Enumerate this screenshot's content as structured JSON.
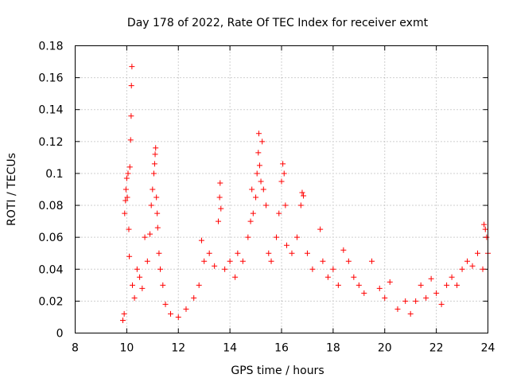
{
  "chart_data": {
    "type": "scatter",
    "title": "Day 178 of 2022, Rate Of TEC Index for receiver exmt",
    "xlabel": "GPS time / hours",
    "ylabel": "ROTI / TECUs",
    "xlim": [
      8,
      24
    ],
    "ylim": [
      0,
      0.18
    ],
    "xticks": [
      "8",
      "10",
      "12",
      "14",
      "16",
      "18",
      "20",
      "22",
      "24"
    ],
    "yticks": [
      "0",
      "0.02",
      "0.04",
      "0.06",
      "0.08",
      "0.1",
      "0.12",
      "0.14",
      "0.16",
      "0.18"
    ],
    "grid": true,
    "marker": "+",
    "color": "#ff0000",
    "series": [
      {
        "values": [
          [
            9.85,
            0.008
          ],
          [
            9.9,
            0.012
          ],
          [
            9.92,
            0.075
          ],
          [
            9.95,
            0.083
          ],
          [
            9.97,
            0.09
          ],
          [
            10.0,
            0.097
          ],
          [
            10.02,
            0.085
          ],
          [
            10.05,
            0.1
          ],
          [
            10.08,
            0.065
          ],
          [
            10.1,
            0.048
          ],
          [
            10.12,
            0.104
          ],
          [
            10.15,
            0.121
          ],
          [
            10.17,
            0.136
          ],
          [
            10.18,
            0.155
          ],
          [
            10.2,
            0.167
          ],
          [
            10.22,
            0.03
          ],
          [
            10.3,
            0.022
          ],
          [
            10.4,
            0.04
          ],
          [
            10.5,
            0.035
          ],
          [
            10.6,
            0.028
          ],
          [
            10.7,
            0.06
          ],
          [
            10.8,
            0.045
          ],
          [
            10.9,
            0.062
          ],
          [
            10.95,
            0.08
          ],
          [
            11.0,
            0.09
          ],
          [
            11.05,
            0.1
          ],
          [
            11.08,
            0.106
          ],
          [
            11.1,
            0.112
          ],
          [
            11.12,
            0.116
          ],
          [
            11.15,
            0.085
          ],
          [
            11.18,
            0.075
          ],
          [
            11.2,
            0.066
          ],
          [
            11.25,
            0.05
          ],
          [
            11.3,
            0.04
          ],
          [
            11.4,
            0.03
          ],
          [
            11.5,
            0.018
          ],
          [
            11.7,
            0.012
          ],
          [
            12.0,
            0.01
          ],
          [
            12.3,
            0.015
          ],
          [
            12.6,
            0.022
          ],
          [
            12.8,
            0.03
          ],
          [
            12.9,
            0.058
          ],
          [
            13.0,
            0.045
          ],
          [
            13.2,
            0.05
          ],
          [
            13.4,
            0.042
          ],
          [
            13.55,
            0.07
          ],
          [
            13.6,
            0.085
          ],
          [
            13.62,
            0.094
          ],
          [
            13.65,
            0.078
          ],
          [
            13.8,
            0.04
          ],
          [
            14.0,
            0.045
          ],
          [
            14.2,
            0.035
          ],
          [
            14.3,
            0.05
          ],
          [
            14.5,
            0.045
          ],
          [
            14.7,
            0.06
          ],
          [
            14.8,
            0.07
          ],
          [
            14.85,
            0.09
          ],
          [
            14.9,
            0.075
          ],
          [
            15.0,
            0.085
          ],
          [
            15.05,
            0.1
          ],
          [
            15.1,
            0.113
          ],
          [
            15.12,
            0.125
          ],
          [
            15.15,
            0.105
          ],
          [
            15.2,
            0.095
          ],
          [
            15.25,
            0.12
          ],
          [
            15.3,
            0.09
          ],
          [
            15.4,
            0.08
          ],
          [
            15.5,
            0.05
          ],
          [
            15.6,
            0.045
          ],
          [
            15.8,
            0.06
          ],
          [
            15.9,
            0.075
          ],
          [
            16.0,
            0.095
          ],
          [
            16.05,
            0.106
          ],
          [
            16.1,
            0.1
          ],
          [
            16.15,
            0.08
          ],
          [
            16.2,
            0.055
          ],
          [
            16.4,
            0.05
          ],
          [
            16.6,
            0.06
          ],
          [
            16.75,
            0.08
          ],
          [
            16.8,
            0.088
          ],
          [
            16.85,
            0.086
          ],
          [
            17.0,
            0.05
          ],
          [
            17.2,
            0.04
          ],
          [
            17.5,
            0.065
          ],
          [
            17.6,
            0.045
          ],
          [
            17.8,
            0.035
          ],
          [
            18.0,
            0.04
          ],
          [
            18.2,
            0.03
          ],
          [
            18.4,
            0.052
          ],
          [
            18.6,
            0.045
          ],
          [
            18.8,
            0.035
          ],
          [
            19.0,
            0.03
          ],
          [
            19.2,
            0.025
          ],
          [
            19.5,
            0.045
          ],
          [
            19.8,
            0.028
          ],
          [
            20.0,
            0.022
          ],
          [
            20.2,
            0.032
          ],
          [
            20.5,
            0.015
          ],
          [
            20.8,
            0.02
          ],
          [
            21.0,
            0.012
          ],
          [
            21.2,
            0.02
          ],
          [
            21.4,
            0.03
          ],
          [
            21.6,
            0.022
          ],
          [
            21.8,
            0.034
          ],
          [
            22.0,
            0.025
          ],
          [
            22.2,
            0.018
          ],
          [
            22.4,
            0.03
          ],
          [
            22.6,
            0.035
          ],
          [
            22.8,
            0.03
          ],
          [
            23.0,
            0.04
          ],
          [
            23.2,
            0.045
          ],
          [
            23.4,
            0.042
          ],
          [
            23.6,
            0.05
          ],
          [
            23.8,
            0.04
          ],
          [
            23.85,
            0.068
          ],
          [
            23.9,
            0.065
          ],
          [
            23.95,
            0.06
          ],
          [
            24.0,
            0.05
          ]
        ]
      }
    ]
  }
}
